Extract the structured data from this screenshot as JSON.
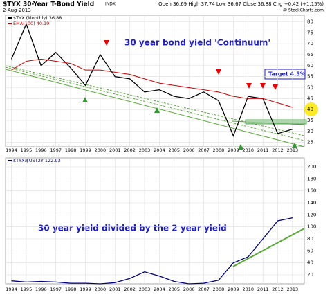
{
  "chart_data": [
    {
      "type": "line",
      "title": "$TYX 30-Year T-Bond Yield",
      "exchange": "INDX",
      "date": "2-Aug-2013",
      "quote": "Open 36.69 High 37.74 Low 36.67 Close 36.88 Chg +0.42 (+1.15%)",
      "source": "@ StockCharts.com",
      "x": [
        1994,
        1995,
        1996,
        1997,
        1998,
        1999,
        2000,
        2001,
        2002,
        2003,
        2004,
        2005,
        2006,
        2007,
        2008,
        2009,
        2010,
        2011,
        2012,
        2013
      ],
      "series": [
        {
          "name": "$TYX (Monthly) 36.88",
          "color": "#000000",
          "values": [
            63,
            79,
            60,
            66,
            59,
            51,
            65,
            55,
            54,
            48,
            49,
            46,
            45,
            48,
            44,
            28,
            46,
            45,
            29,
            31
          ]
        },
        {
          "name": "EMA(100) 40.19",
          "color": "#cc0000",
          "values": [
            58,
            62,
            63,
            62,
            61,
            58,
            58,
            57,
            56,
            54,
            52,
            51,
            50,
            49,
            48,
            46,
            45,
            45,
            43,
            41
          ]
        }
      ],
      "xlim": [
        1993.6,
        2013.8
      ],
      "xticks": [
        1994,
        1995,
        1996,
        1997,
        1998,
        1999,
        2000,
        2001,
        2002,
        2003,
        2004,
        2005,
        2006,
        2007,
        2008,
        2009,
        2010,
        2011,
        2012,
        2013
      ],
      "ylim": [
        23,
        83
      ],
      "yticks": [
        25,
        30,
        35,
        40,
        45,
        50,
        55,
        60,
        65,
        70,
        75,
        80
      ],
      "grid": true,
      "annotations": [
        "30 year bond yield 'Continuum'",
        "Target 4.5%"
      ]
    },
    {
      "type": "line",
      "x": [
        1994,
        1995,
        1996,
        1997,
        1998,
        1999,
        2000,
        2001,
        2002,
        2003,
        2004,
        2005,
        2006,
        2007,
        2008,
        2009,
        2010,
        2011,
        2012,
        2013
      ],
      "series": [
        {
          "name": "$TYX:$UST2Y 122.93",
          "color": "#000080",
          "values": [
            10,
            8,
            9,
            8,
            6,
            6,
            5,
            7,
            14,
            25,
            18,
            9,
            5,
            6,
            11,
            40,
            50,
            80,
            110,
            115
          ]
        }
      ],
      "xlim": [
        1993.6,
        2013.8
      ],
      "xticks": [
        1994,
        1995,
        1996,
        1997,
        1998,
        1999,
        2000,
        2001,
        2002,
        2003,
        2004,
        2005,
        2006,
        2007,
        2008,
        2009,
        2010,
        2011,
        2012,
        2013
      ],
      "ylim": [
        5,
        215
      ],
      "yticks": [
        20,
        40,
        60,
        80,
        100,
        120,
        140,
        160,
        180,
        200
      ],
      "grid": true,
      "annotations": [
        "30 year yield divided by the 2 year yield"
      ]
    }
  ]
}
